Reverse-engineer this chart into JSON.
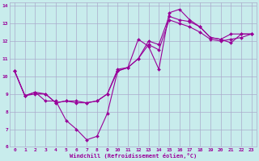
{
  "xlabel": "Windchill (Refroidissement éolien,°C)",
  "bg_color": "#c8ecec",
  "grid_color": "#aaaacc",
  "line_color": "#990099",
  "xlim": [
    -0.5,
    23.5
  ],
  "ylim": [
    6,
    14.2
  ],
  "xticks": [
    0,
    1,
    2,
    3,
    4,
    5,
    6,
    7,
    8,
    9,
    10,
    11,
    12,
    13,
    14,
    15,
    16,
    17,
    18,
    19,
    20,
    21,
    22,
    23
  ],
  "yticks": [
    6,
    7,
    8,
    9,
    10,
    11,
    12,
    13,
    14
  ],
  "lines": [
    {
      "x": [
        0,
        1,
        2,
        3,
        4,
        5,
        6,
        7,
        8,
        9,
        10,
        11,
        12,
        13,
        14,
        15,
        16,
        17,
        18,
        19,
        20,
        21,
        22,
        23
      ],
      "y": [
        10.3,
        8.9,
        9.1,
        9.0,
        8.5,
        8.6,
        8.6,
        8.5,
        8.6,
        9.0,
        10.4,
        10.5,
        11.0,
        12.0,
        11.8,
        13.4,
        13.2,
        13.1,
        12.8,
        12.2,
        12.1,
        12.4,
        12.4,
        12.4
      ]
    },
    {
      "x": [
        0,
        1,
        2,
        3,
        4,
        5,
        6,
        7,
        8,
        9,
        10,
        11,
        12,
        13,
        14,
        15,
        16,
        17,
        18,
        19,
        20,
        21,
        22,
        23
      ],
      "y": [
        10.3,
        8.9,
        9.0,
        9.0,
        8.5,
        8.6,
        8.5,
        8.5,
        8.6,
        9.0,
        10.3,
        10.5,
        11.0,
        11.8,
        11.5,
        13.2,
        13.0,
        12.8,
        12.5,
        12.1,
        12.0,
        12.1,
        12.2,
        12.4
      ]
    },
    {
      "x": [
        0,
        1,
        2,
        3,
        4,
        5,
        6,
        7,
        8,
        9,
        10,
        11,
        12,
        13,
        14,
        15,
        16,
        17,
        18,
        19,
        20,
        21,
        22,
        23
      ],
      "y": [
        10.3,
        8.9,
        9.1,
        8.6,
        8.6,
        7.5,
        7.0,
        6.4,
        6.6,
        7.9,
        10.3,
        10.5,
        12.1,
        11.7,
        10.4,
        13.6,
        13.8,
        13.2,
        12.8,
        12.2,
        12.1,
        11.9,
        12.4,
        12.4
      ]
    }
  ]
}
